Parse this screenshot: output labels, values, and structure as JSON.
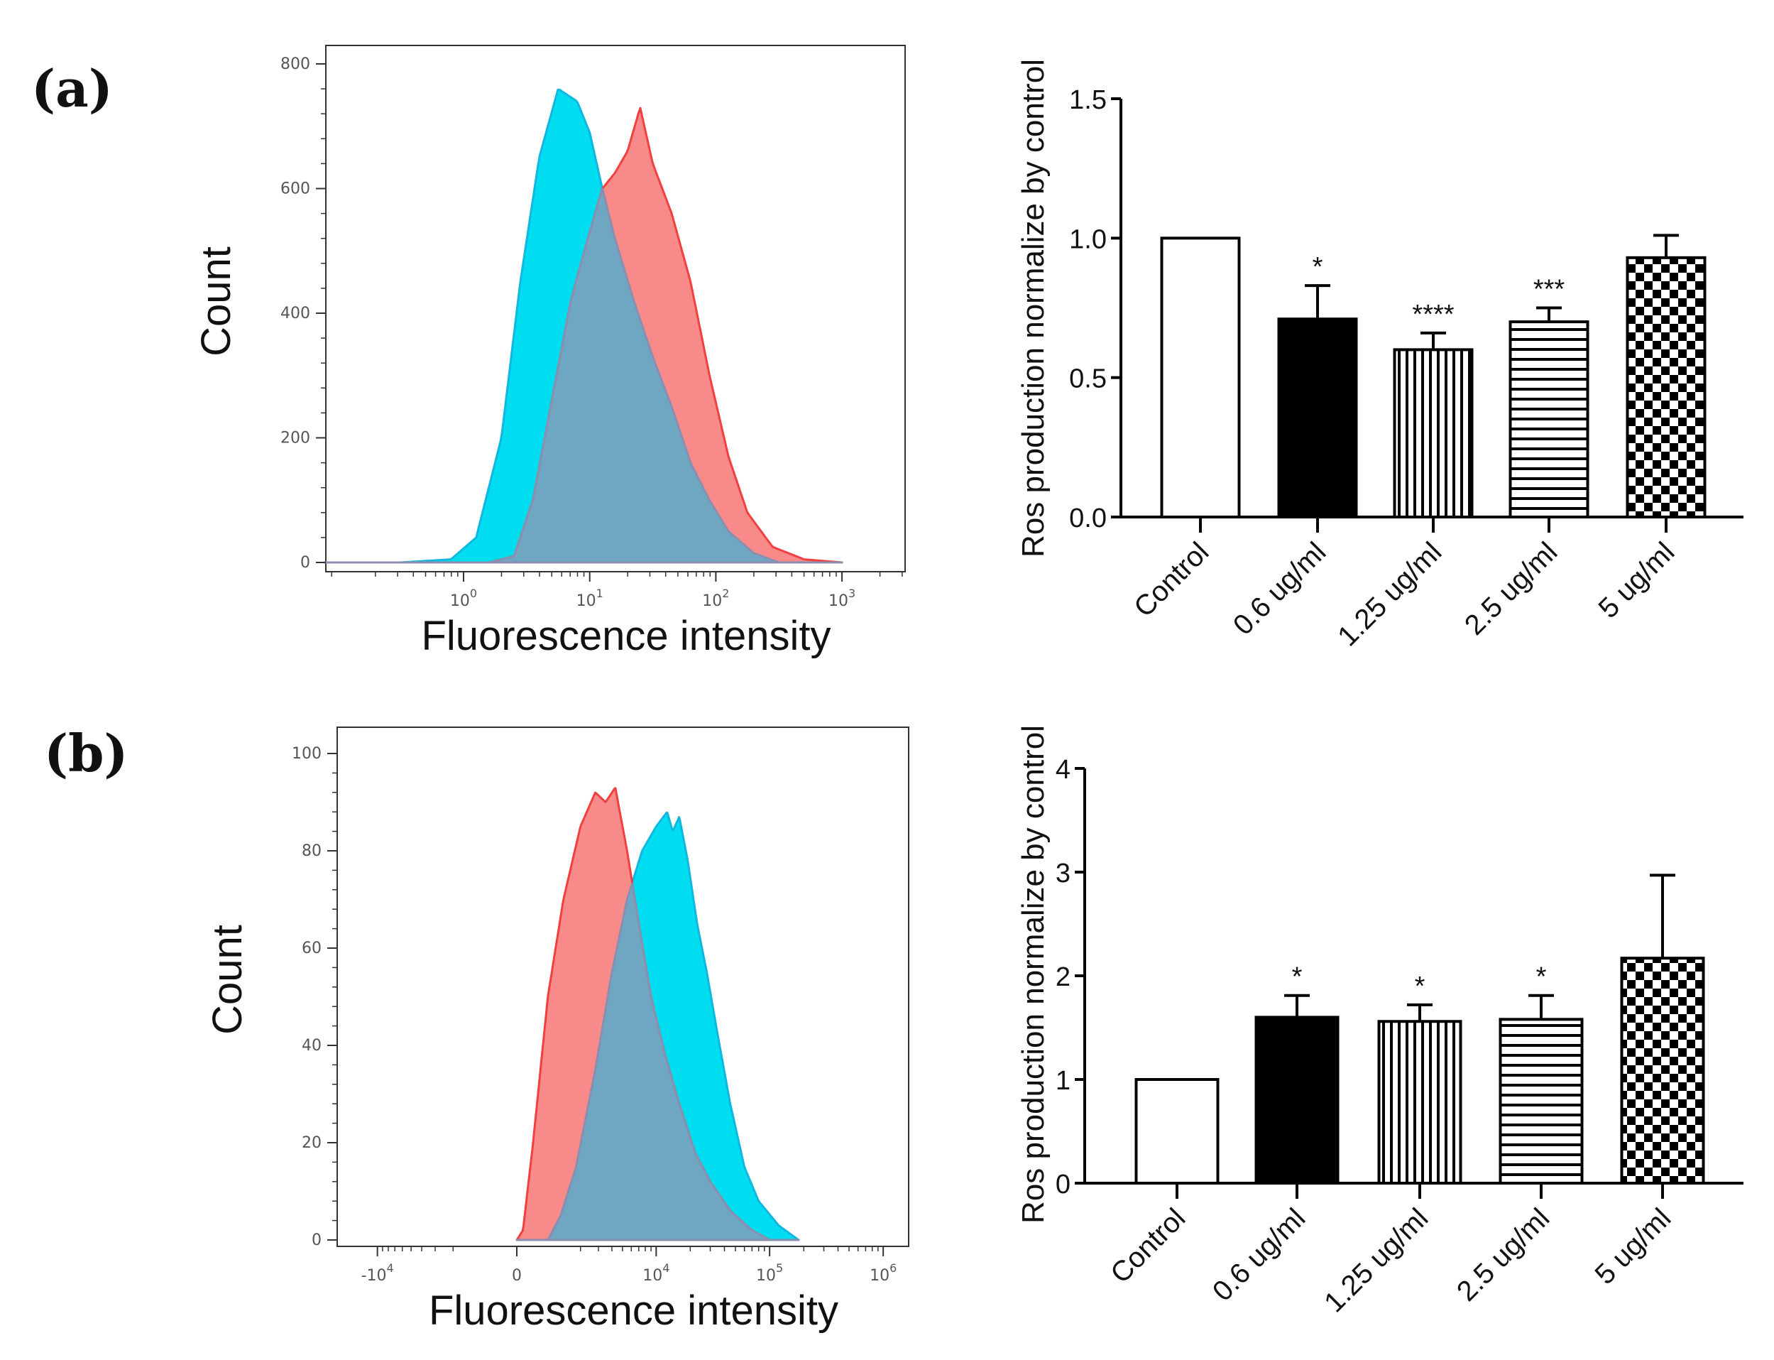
{
  "panels": [
    {
      "label": "(a)"
    },
    {
      "label": "(b)"
    }
  ],
  "colors": {
    "cyan": "#00dcf0",
    "red": "#f88a8a",
    "overlap": "#6fa6c2",
    "red_line": "#f04040",
    "cyan_line": "#10b8e0"
  },
  "chart_data": [
    {
      "type": "area",
      "panel": "(a)",
      "title": "",
      "xlabel": "Fluorescence intensity",
      "ylabel": "Count",
      "xscale": "log",
      "xlim_log10": [
        -1.1,
        3.45
      ],
      "ylim": [
        0,
        820
      ],
      "yticks": [
        0,
        200,
        400,
        600,
        800
      ],
      "xticks": [
        {
          "base": "10",
          "exp": "0",
          "value": 1
        },
        {
          "base": "10",
          "exp": "1",
          "value": 10
        },
        {
          "base": "10",
          "exp": "2",
          "value": 100
        },
        {
          "base": "10",
          "exp": "3",
          "value": 1000
        }
      ],
      "series": [
        {
          "name": "cyan",
          "log10_x": [
            -1.1,
            -0.5,
            -0.1,
            0.1,
            0.3,
            0.45,
            0.6,
            0.75,
            0.9,
            1.0,
            1.1,
            1.2,
            1.35,
            1.5,
            1.65,
            1.8,
            1.95,
            2.1,
            2.3,
            2.5
          ],
          "counts": [
            0,
            0,
            5,
            40,
            200,
            450,
            650,
            760,
            740,
            690,
            600,
            520,
            420,
            330,
            250,
            160,
            100,
            50,
            15,
            0
          ]
        },
        {
          "name": "red",
          "log10_x": [
            -1.1,
            0.2,
            0.4,
            0.55,
            0.7,
            0.85,
            1.0,
            1.1,
            1.2,
            1.3,
            1.4,
            1.5,
            1.65,
            1.8,
            1.95,
            2.1,
            2.25,
            2.45,
            2.7,
            3.0
          ],
          "counts": [
            0,
            0,
            10,
            100,
            260,
            420,
            530,
            600,
            625,
            660,
            730,
            640,
            560,
            450,
            300,
            170,
            80,
            25,
            5,
            0
          ]
        }
      ]
    },
    {
      "type": "bar",
      "panel": "(a)",
      "ylabel": "Ros production normalize by control",
      "categories": [
        "Control",
        "0.6 ug/ml",
        "1.25 ug/ml",
        "2.5 ug/ml",
        "5 ug/ml"
      ],
      "values": [
        1.0,
        0.71,
        0.6,
        0.7,
        0.93
      ],
      "error_upper": [
        1.0,
        0.83,
        0.66,
        0.75,
        1.01
      ],
      "fills": [
        "white",
        "black",
        "vertical-stripes",
        "horizontal-stripes",
        "checkerboard"
      ],
      "significance": [
        "",
        "*",
        "****",
        "***",
        ""
      ],
      "ylim": [
        0,
        1.5
      ],
      "yticks": [
        "0.0",
        "0.5",
        "1.0",
        "1.5"
      ]
    },
    {
      "type": "area",
      "panel": "(b)",
      "xlabel": "Fluorescence intensity",
      "ylabel": "Count",
      "xscale": "biexponential",
      "ylim": [
        0,
        100
      ],
      "yticks": [
        0,
        20,
        40,
        60,
        80,
        100
      ],
      "xticks": [
        {
          "base": "-10",
          "exp": "4",
          "value": -10000
        },
        {
          "base": "0",
          "exp": "",
          "value": 0
        },
        {
          "base": "10",
          "exp": "4",
          "value": 10000
        },
        {
          "base": "10",
          "exp": "5",
          "value": 100000
        },
        {
          "base": "10",
          "exp": "6",
          "value": 1000000
        }
      ],
      "series": [
        {
          "name": "red",
          "x": [
            0,
            150,
            400,
            800,
            1300,
            2000,
            2800,
            3500,
            4300,
            5500,
            7000,
            9000,
            12000,
            16000,
            22000,
            30000,
            45000,
            70000,
            100000
          ],
          "counts": [
            0,
            2,
            20,
            50,
            70,
            85,
            92,
            90,
            93,
            80,
            65,
            50,
            38,
            28,
            18,
            12,
            6,
            2,
            0
          ]
        },
        {
          "name": "cyan",
          "x": [
            800,
            1200,
            1800,
            2800,
            4000,
            5500,
            7500,
            10000,
            12500,
            14000,
            16000,
            19000,
            23000,
            28000,
            35000,
            45000,
            60000,
            80000,
            120000,
            180000
          ],
          "counts": [
            0,
            5,
            15,
            35,
            55,
            70,
            80,
            85,
            88,
            84,
            87,
            78,
            65,
            55,
            42,
            28,
            15,
            8,
            3,
            0
          ]
        }
      ]
    },
    {
      "type": "bar",
      "panel": "(b)",
      "ylabel": "Ros production normalize by control",
      "categories": [
        "Control",
        "0.6 ug/ml",
        "1.25 ug/ml",
        "2.5 ug/ml",
        "5 ug/ml"
      ],
      "values": [
        1.0,
        1.6,
        1.56,
        1.58,
        2.17
      ],
      "error_upper": [
        1.0,
        1.81,
        1.72,
        1.81,
        2.97
      ],
      "fills": [
        "white",
        "black",
        "vertical-stripes",
        "horizontal-stripes",
        "checkerboard"
      ],
      "significance": [
        "",
        "*",
        "*",
        "*",
        ""
      ],
      "ylim": [
        0,
        4
      ],
      "yticks": [
        "0",
        "1",
        "2",
        "3",
        "4"
      ]
    }
  ]
}
